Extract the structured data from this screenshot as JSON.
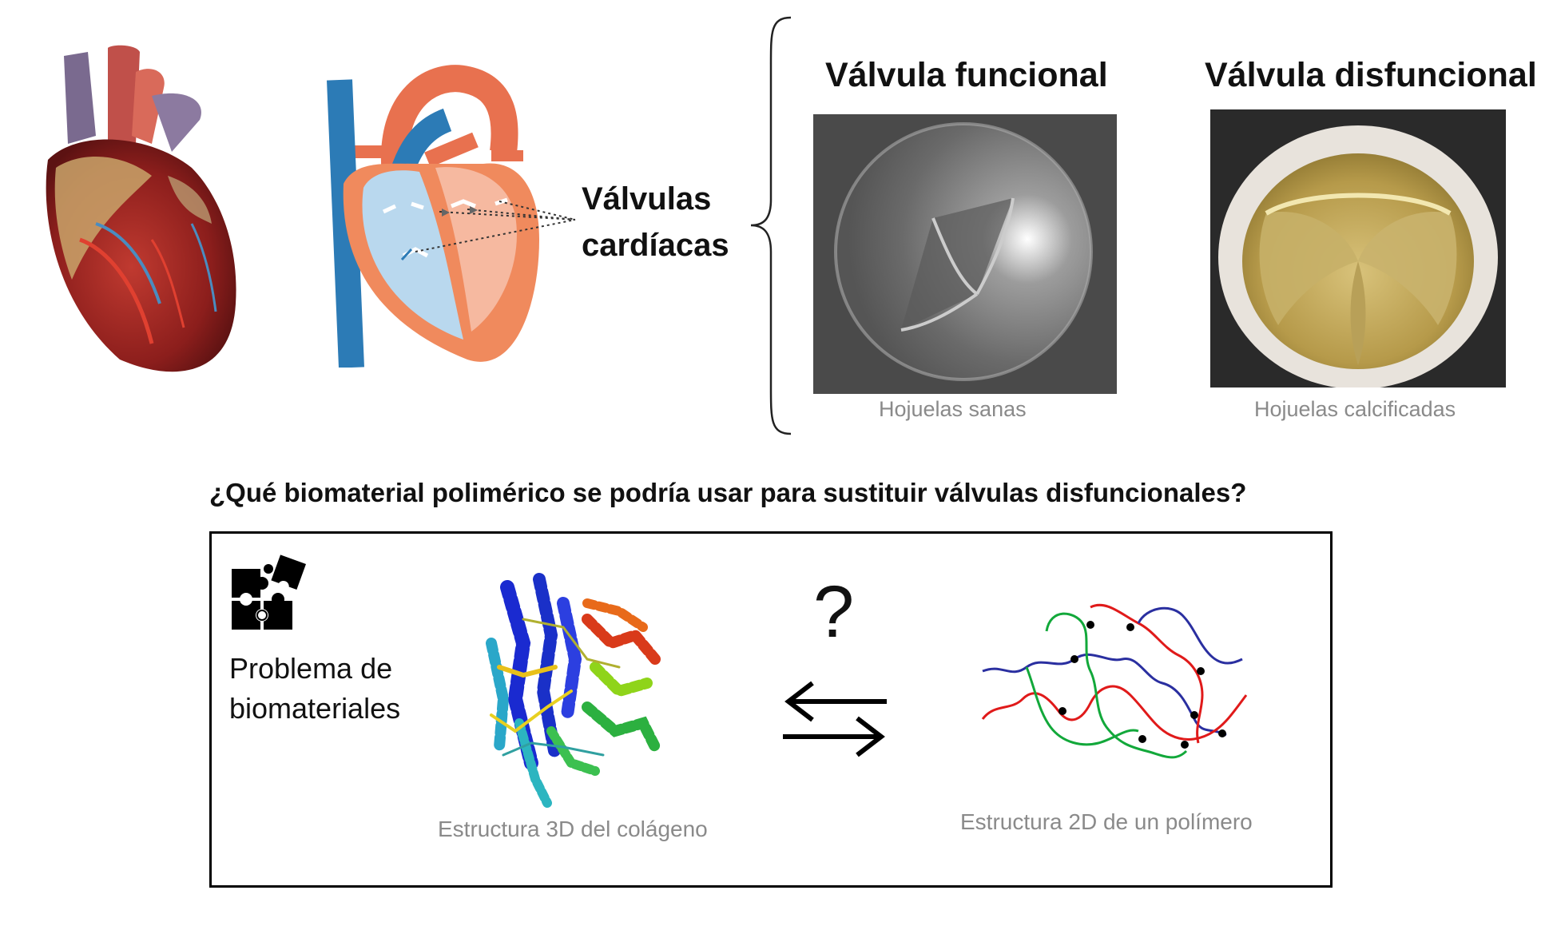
{
  "header": {
    "valves_label_line1": "Válvulas",
    "valves_label_line2": "cardíacas"
  },
  "panels": {
    "functional": {
      "title": "Válvula funcional",
      "caption": "Hojuelas sanas"
    },
    "dysfunctional": {
      "title": "Válvula disfuncional",
      "caption": "Hojuelas calcificadas"
    }
  },
  "question": "¿Qué biomaterial polimérico se podría usar para sustituir válvulas disfuncionales?",
  "box": {
    "problem_line1": "Problema de",
    "problem_line2": "biomateriales",
    "collagen_caption": "Estructura 3D del colágeno",
    "question_mark": "?",
    "polymer_caption": "Estructura 2D de un polímero"
  },
  "icons": {
    "puzzle": "puzzle-icon",
    "exchange": "exchange-arrows-icon"
  },
  "colors": {
    "artery_red": "#e8714f",
    "vein_blue": "#2c7bb6",
    "chamber_blue": "#b9d8ee",
    "chamber_orange": "#f4a184"
  }
}
